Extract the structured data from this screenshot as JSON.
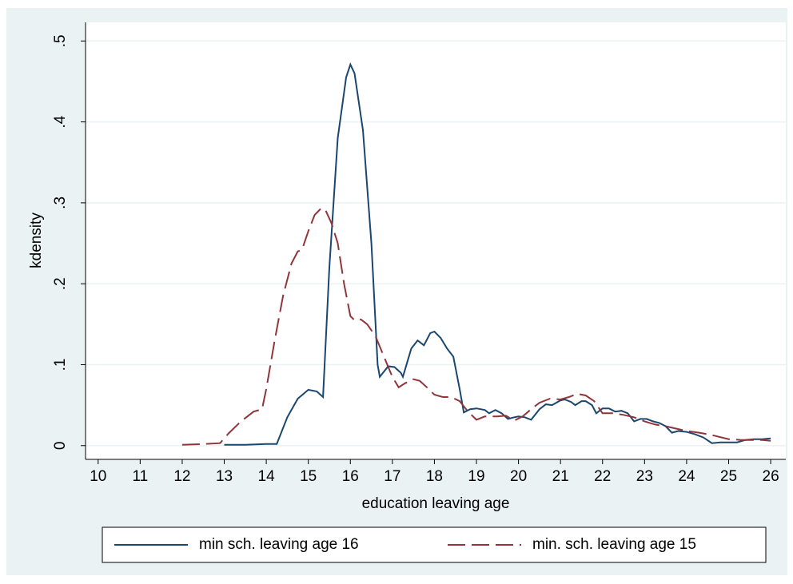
{
  "chart_data": {
    "type": "line",
    "xlabel": "education leaving age",
    "ylabel": "kdensity",
    "xlim": [
      9.7,
      26.36
    ],
    "ylim": [
      -0.017,
      0.523
    ],
    "xticks": [
      10,
      11,
      12,
      13,
      14,
      15,
      16,
      17,
      18,
      19,
      20,
      21,
      22,
      23,
      24,
      25,
      26
    ],
    "yticks": [
      0,
      {
        "value": 0.1,
        "label": ".1"
      },
      {
        "value": 0.2,
        "label": ".2"
      },
      {
        "value": 0.3,
        "label": ".3"
      },
      {
        "value": 0.4,
        "label": ".4"
      },
      {
        "value": 0.5,
        "label": ".5"
      }
    ],
    "grid": true,
    "legend": "bottom",
    "series": [
      {
        "name": "min sch. leaving age 16",
        "color": "#1a476f",
        "line_style": "solid",
        "x": [
          13,
          13.5,
          14,
          14.25,
          14.5,
          14.75,
          15,
          15.2,
          15.35,
          15.5,
          15.7,
          15.9,
          16,
          16.1,
          16.3,
          16.5,
          16.65,
          16.7,
          16.9,
          17.05,
          17.2,
          17.25,
          17.45,
          17.6,
          17.75,
          17.9,
          18,
          18.15,
          18.3,
          18.45,
          18.6,
          18.7,
          18.85,
          19,
          19.2,
          19.3,
          19.45,
          19.6,
          19.75,
          19.9,
          20,
          20.15,
          20.3,
          20.5,
          20.65,
          20.8,
          21,
          21.1,
          21.25,
          21.35,
          21.5,
          21.6,
          21.75,
          21.85,
          22,
          22.15,
          22.3,
          22.45,
          22.6,
          22.75,
          22.9,
          23.05,
          23.2,
          23.35,
          23.5,
          23.65,
          23.8,
          24,
          24.2,
          24.4,
          24.6,
          24.8,
          25,
          25.2,
          25.4,
          25.6,
          25.8,
          26
        ],
        "values": [
          0.001,
          0.001,
          0.002,
          0.002,
          0.035,
          0.058,
          0.069,
          0.067,
          0.06,
          0.22,
          0.38,
          0.455,
          0.471,
          0.46,
          0.39,
          0.25,
          0.1,
          0.085,
          0.098,
          0.097,
          0.09,
          0.085,
          0.12,
          0.13,
          0.124,
          0.139,
          0.141,
          0.133,
          0.12,
          0.11,
          0.07,
          0.041,
          0.045,
          0.046,
          0.044,
          0.04,
          0.044,
          0.04,
          0.033,
          0.035,
          0.036,
          0.035,
          0.032,
          0.045,
          0.051,
          0.05,
          0.056,
          0.057,
          0.054,
          0.05,
          0.055,
          0.055,
          0.05,
          0.04,
          0.046,
          0.046,
          0.042,
          0.043,
          0.04,
          0.03,
          0.033,
          0.033,
          0.03,
          0.028,
          0.024,
          0.016,
          0.018,
          0.017,
          0.014,
          0.01,
          0.003,
          0.004,
          0.004,
          0.004,
          0.007,
          0.008,
          0.008,
          0.009
        ]
      },
      {
        "name": "min. sch. leaving age 15",
        "color": "#90353b",
        "line_style": "dashed",
        "x": [
          12,
          12.5,
          12.9,
          13.1,
          13.4,
          13.7,
          13.9,
          14,
          14.2,
          14.4,
          14.6,
          14.75,
          14.85,
          15,
          15.15,
          15.3,
          15.4,
          15.55,
          15.7,
          15.85,
          16,
          16.1,
          16.25,
          16.4,
          16.6,
          16.8,
          17,
          17.15,
          17.3,
          17.5,
          17.65,
          17.8,
          18,
          18.2,
          18.4,
          18.6,
          18.8,
          19,
          19.2,
          19.5,
          19.7,
          19.9,
          20.1,
          20.3,
          20.5,
          20.75,
          21,
          21.2,
          21.4,
          21.6,
          21.8,
          22,
          22.25,
          22.5,
          22.75,
          23,
          23.25,
          23.5,
          23.75,
          24,
          24.3,
          24.6,
          25,
          25.3,
          25.6,
          25.8,
          26
        ],
        "values": [
          0.001,
          0.002,
          0.003,
          0.015,
          0.03,
          0.042,
          0.045,
          0.07,
          0.13,
          0.185,
          0.225,
          0.24,
          0.242,
          0.265,
          0.285,
          0.293,
          0.292,
          0.275,
          0.25,
          0.2,
          0.16,
          0.155,
          0.156,
          0.15,
          0.135,
          0.11,
          0.085,
          0.072,
          0.077,
          0.082,
          0.08,
          0.073,
          0.063,
          0.06,
          0.06,
          0.055,
          0.042,
          0.032,
          0.036,
          0.036,
          0.037,
          0.031,
          0.036,
          0.045,
          0.053,
          0.058,
          0.057,
          0.06,
          0.064,
          0.062,
          0.055,
          0.04,
          0.04,
          0.038,
          0.035,
          0.03,
          0.026,
          0.024,
          0.021,
          0.018,
          0.016,
          0.013,
          0.008,
          0.007,
          0.007,
          0.007,
          0.006
        ]
      }
    ]
  }
}
